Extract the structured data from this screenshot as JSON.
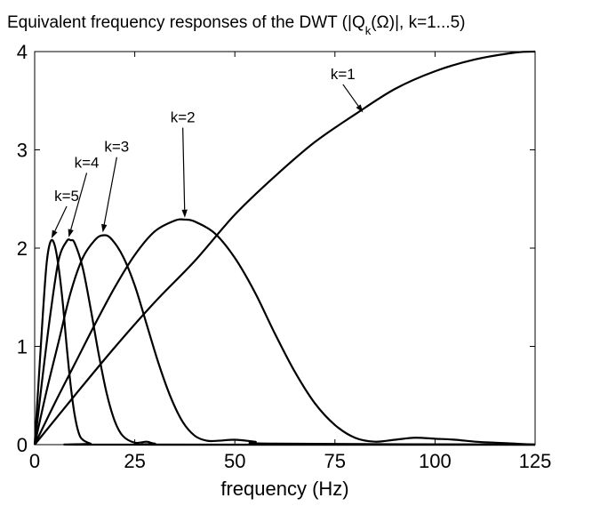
{
  "chart_data": {
    "type": "line",
    "title_parts": {
      "pre": "Equivalent frequency responses of the DWT (|Q",
      "sub": "k",
      "post": "(Ω)|, k=1...5)"
    },
    "xlabel": "frequency (Hz)",
    "ylabel": "",
    "xlim": [
      0,
      125
    ],
    "ylim": [
      0,
      4
    ],
    "xticks": [
      0,
      25,
      50,
      75,
      100,
      125
    ],
    "yticks": [
      0,
      1,
      2,
      3,
      4
    ],
    "grid": false,
    "series": [
      {
        "name": "k=1",
        "x": [
          0,
          10,
          20,
          30,
          40,
          50,
          60,
          70,
          80,
          90,
          100,
          110,
          120,
          125
        ],
        "y": [
          0,
          0.5,
          0.99,
          1.45,
          1.87,
          2.34,
          2.73,
          3.08,
          3.36,
          3.62,
          3.8,
          3.92,
          3.99,
          4.0
        ]
      },
      {
        "name": "k=2",
        "x": [
          0,
          5,
          10,
          15,
          20,
          25,
          30,
          35,
          37.5,
          40,
          45,
          50,
          55,
          60,
          65,
          70,
          75,
          80,
          85,
          90,
          95,
          100,
          105,
          110,
          115,
          120,
          125
        ],
        "y": [
          0,
          0.42,
          0.82,
          1.22,
          1.6,
          1.93,
          2.17,
          2.28,
          2.29,
          2.27,
          2.15,
          1.9,
          1.55,
          1.13,
          0.74,
          0.42,
          0.2,
          0.07,
          0.03,
          0.05,
          0.07,
          0.06,
          0.05,
          0.03,
          0.02,
          0.01,
          0
        ]
      },
      {
        "name": "k=3",
        "x": [
          0,
          3,
          6,
          9,
          12,
          15,
          17,
          19,
          22,
          25,
          28,
          31,
          34,
          37,
          40,
          43,
          46,
          50,
          55,
          60,
          125
        ],
        "y": [
          0,
          0.55,
          1.05,
          1.55,
          1.9,
          2.08,
          2.13,
          2.1,
          1.92,
          1.62,
          1.22,
          0.82,
          0.48,
          0.23,
          0.09,
          0.04,
          0.04,
          0.05,
          0.03,
          0.01,
          0
        ]
      },
      {
        "name": "k=4",
        "x": [
          0,
          2,
          4,
          6,
          8,
          9,
          10,
          12,
          14,
          16,
          18,
          20,
          22,
          25,
          28,
          30,
          35,
          125
        ],
        "y": [
          0,
          0.7,
          1.35,
          1.88,
          2.07,
          2.08,
          2.05,
          1.8,
          1.38,
          0.92,
          0.52,
          0.24,
          0.09,
          0.02,
          0.03,
          0.01,
          0,
          0
        ]
      },
      {
        "name": "k=5",
        "x": [
          0,
          1,
          2,
          3,
          4,
          5,
          6,
          7,
          8,
          9,
          10,
          11,
          12,
          14,
          16,
          125
        ],
        "y": [
          0,
          0.65,
          1.3,
          1.85,
          2.07,
          2.03,
          1.8,
          1.45,
          1.0,
          0.6,
          0.3,
          0.12,
          0.05,
          0.01,
          0,
          0
        ]
      }
    ],
    "annotations": [
      {
        "text": "k=1",
        "label_at": [
          77,
          3.72
        ],
        "arrow_to": [
          82,
          3.38
        ]
      },
      {
        "text": "k=2",
        "label_at": [
          37,
          3.28
        ],
        "arrow_to": [
          37.5,
          2.31
        ]
      },
      {
        "text": "k=3",
        "label_at": [
          20.5,
          2.98
        ],
        "arrow_to": [
          17,
          2.16
        ]
      },
      {
        "text": "k=4",
        "label_at": [
          13,
          2.82
        ],
        "arrow_to": [
          8.5,
          2.11
        ]
      },
      {
        "text": "k=5",
        "label_at": [
          8,
          2.48
        ],
        "arrow_to": [
          4.2,
          2.1
        ]
      }
    ]
  }
}
